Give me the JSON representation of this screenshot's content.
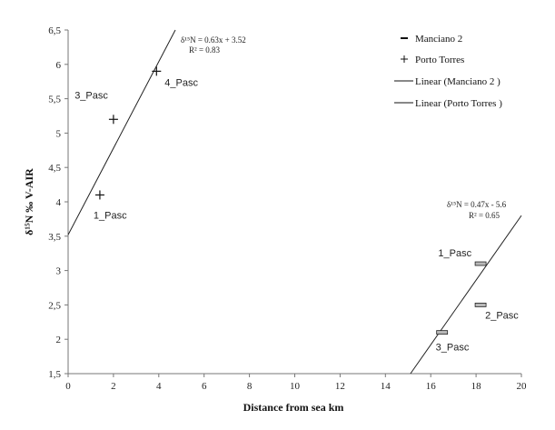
{
  "chart_data": {
    "type": "scatter",
    "xlabel": "Distance from sea km",
    "ylabel": "δ¹⁵N ‰ V-AIR",
    "xlim": [
      0,
      20
    ],
    "ylim": [
      1.5,
      6.5
    ],
    "x_ticks": [
      "0",
      "2",
      "4",
      "6",
      "8",
      "10",
      "12",
      "14",
      "16",
      "18",
      "20"
    ],
    "y_ticks": [
      "1,5",
      "2",
      "2,5",
      "3",
      "3,5",
      "4",
      "4,5",
      "5",
      "5,5",
      "6",
      "6,5"
    ],
    "grid": false,
    "legend_position": "top-right",
    "series": [
      {
        "name": "Manciano 2",
        "marker": "dash",
        "points": [
          {
            "x": 16.5,
            "y": 2.1,
            "label": "3_Pasc"
          },
          {
            "x": 18.2,
            "y": 2.5,
            "label": "2_Pasc"
          },
          {
            "x": 18.2,
            "y": 3.1,
            "label": "1_Pasc"
          }
        ]
      },
      {
        "name": "Porto Torres",
        "marker": "plus",
        "points": [
          {
            "x": 1.4,
            "y": 4.1,
            "label": "1_Pasc"
          },
          {
            "x": 2.0,
            "y": 5.2,
            "label": "3_Pasc"
          },
          {
            "x": 3.9,
            "y": 5.9,
            "label": "4_Pasc"
          }
        ]
      }
    ],
    "trendlines": [
      {
        "name": "Linear (Manciano 2 )",
        "slope": 0.47,
        "intercept": -5.6,
        "equation": "δ¹⁵N = 0.47x - 5.6",
        "r2": "R² = 0.65"
      },
      {
        "name": "Linear (Porto Torres )",
        "slope": 0.63,
        "intercept": 3.52,
        "equation": "δ¹⁵N = 0.63x + 3.52",
        "r2": "R² = 0.83"
      }
    ]
  }
}
